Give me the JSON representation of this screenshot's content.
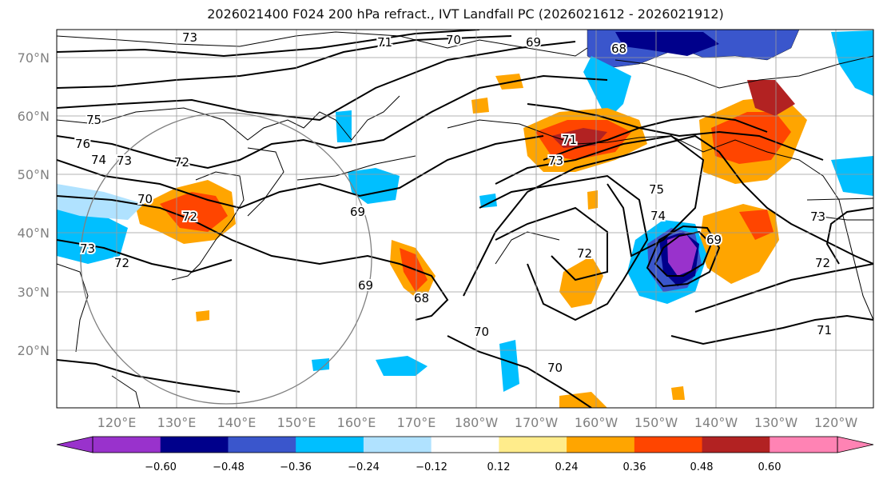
{
  "title": "2026021400 F024 200 hPa refract., IVT Landfall PC (2026021612 - 2026021912)",
  "map": {
    "lat_ticks": [
      "20°N",
      "30°N",
      "40°N",
      "50°N",
      "60°N",
      "70°N"
    ],
    "lon_ticks": [
      "120°E",
      "130°E",
      "140°E",
      "150°E",
      "160°E",
      "170°E",
      "180°W",
      "170°W",
      "160°W",
      "150°W",
      "140°W",
      "130°W",
      "120°W"
    ],
    "contour_labels": [
      "73",
      "71",
      "70",
      "69",
      "68",
      "75",
      "76",
      "74",
      "73",
      "72",
      "70",
      "72",
      "73",
      "72",
      "69",
      "69",
      "68",
      "70",
      "70",
      "71",
      "73",
      "72",
      "75",
      "74",
      "69",
      "73",
      "72",
      "71"
    ]
  },
  "colorbar": {
    "ticks": [
      "−0.60",
      "−0.48",
      "−0.36",
      "−0.24",
      "−0.12",
      "0.12",
      "0.24",
      "0.36",
      "0.48",
      "0.60"
    ],
    "colors": [
      "#9932cc",
      "#00008b",
      "#3a56cc",
      "#00bfff",
      "#b0e2ff",
      "#ffffff",
      "#ffec8b",
      "#ffa500",
      "#ff4500",
      "#b22222",
      "#ff83b4"
    ]
  },
  "shading_colors": {
    "purple": "#9932cc",
    "navy": "#00008b",
    "blue": "#3a56cc",
    "sky": "#00bfff",
    "light": "#b0e2ff",
    "yellow": "#ffec8b",
    "orange": "#ffa500",
    "red": "#ff4500",
    "dark_red": "#b22222"
  }
}
